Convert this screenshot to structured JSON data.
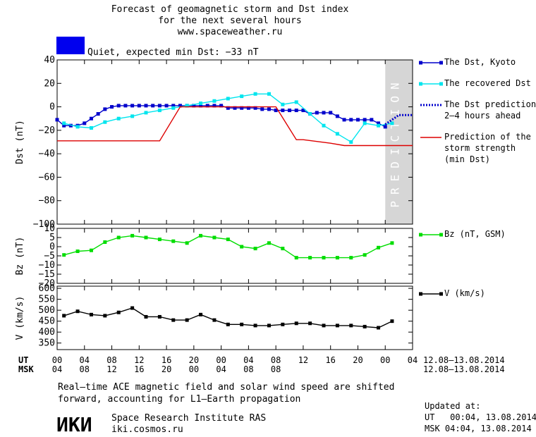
{
  "header": {
    "title_lines": [
      "Forecast of geomagnetic storm and Dst index",
      "for the next several hours",
      "www.spaceweather.ru"
    ],
    "status_text": "Quiet, expected min Dst: −33 nT",
    "status_color": "#0000ee"
  },
  "chart_data": [
    {
      "type": "line",
      "ylabel": "Dst (nT)",
      "ylim": [
        -100,
        40
      ],
      "yticks": [
        40,
        20,
        0,
        -20,
        -40,
        -60,
        -80,
        -100
      ],
      "ytick_labels": [
        "40",
        "20",
        "0",
        "−20",
        "−40",
        "−60",
        "−80",
        "−100"
      ],
      "xlim_hours": [
        0,
        52
      ],
      "prediction_band_hours": [
        48,
        52
      ],
      "prediction_text": "PREDICTION",
      "series": [
        {
          "name": "The Dst, Kyoto",
          "color": "#0000cc",
          "marker": "square",
          "x": [
            0,
            1,
            2,
            3,
            4,
            5,
            6,
            7,
            8,
            9,
            10,
            11,
            12,
            13,
            14,
            15,
            16,
            17,
            18,
            19,
            20,
            21,
            22,
            23,
            24,
            25,
            26,
            27,
            28,
            29,
            30,
            31,
            32,
            33,
            34,
            35,
            36,
            37,
            38,
            39,
            40,
            41,
            42,
            43,
            44,
            45,
            46,
            47,
            48
          ],
          "y": [
            -11,
            -16,
            -16,
            -16,
            -14,
            -10,
            -6,
            -2,
            0,
            1,
            1,
            1,
            1,
            1,
            1,
            1,
            1,
            1,
            1,
            1,
            1,
            1,
            1,
            1,
            1,
            -1,
            -1,
            -1,
            -1,
            -1,
            -2,
            -2,
            -3,
            -3,
            -3,
            -3,
            -3,
            -6,
            -5,
            -5,
            -5,
            -8,
            -11,
            -11,
            -11,
            -11,
            -11,
            -14,
            -17
          ]
        },
        {
          "name": "The recovered Dst",
          "color": "#00e5ee",
          "marker": "square",
          "x": [
            1,
            3,
            5,
            7,
            9,
            11,
            13,
            15,
            17,
            19,
            21,
            23,
            25,
            27,
            29,
            31,
            33,
            35,
            37,
            39,
            41,
            43,
            45,
            47,
            49
          ],
          "y": [
            -14,
            -17,
            -18,
            -13,
            -10,
            -8,
            -5,
            -3,
            -1,
            1,
            3,
            5,
            7,
            9,
            11,
            11,
            2,
            4,
            -6,
            -16,
            -23,
            -30,
            -14,
            -16,
            -14
          ]
        },
        {
          "name": "The Dst prediction 2–4 hours ahead",
          "color": "#0000cc",
          "style": "dotted",
          "x": [
            48,
            50,
            52
          ],
          "y": [
            -15,
            -7,
            -7
          ]
        },
        {
          "name": "Prediction of the storm strength (min Dst)",
          "color": "#dd0000",
          "x": [
            0,
            15,
            18,
            32,
            35,
            36,
            40,
            42,
            52
          ],
          "y": [
            -29,
            -29,
            0,
            0,
            -28,
            -28,
            -31,
            -33,
            -33
          ]
        }
      ],
      "legend": {
        "items": [
          {
            "lines": [
              "The Dst, Kyoto"
            ],
            "color": "#0000cc",
            "kind": "marker-line"
          },
          {
            "lines": [
              "The recovered Dst"
            ],
            "color": "#00e5ee",
            "kind": "marker-line"
          },
          {
            "lines": [
              "The Dst prediction",
              "2–4 hours ahead"
            ],
            "color": "#0000cc",
            "kind": "dotted"
          },
          {
            "lines": [
              "Prediction of the",
              "storm strength",
              "(min Dst)"
            ],
            "color": "#dd0000",
            "kind": "line"
          }
        ]
      }
    },
    {
      "type": "line",
      "ylabel": "Bz (nT)",
      "ylim": [
        -20,
        10
      ],
      "yticks": [
        10,
        5,
        0,
        -5,
        -10,
        -15,
        -20
      ],
      "ytick_labels": [
        "10",
        "5",
        "0",
        "−5",
        "−10",
        "−15",
        "−20"
      ],
      "series": [
        {
          "name": "Bz (nT, GSM)",
          "color": "#00dd00",
          "marker": "square",
          "x": [
            1,
            3,
            5,
            7,
            9,
            11,
            13,
            15,
            17,
            19,
            21,
            23,
            25,
            27,
            29,
            31,
            33,
            35,
            37,
            39,
            41,
            43,
            45,
            47,
            49
          ],
          "y": [
            -4.5,
            -2.5,
            -2,
            2.5,
            5,
            6,
            5,
            4,
            3,
            2,
            6,
            5,
            4,
            0,
            -1,
            2,
            -1,
            -6,
            -6,
            -6,
            -6,
            -6,
            -4.5,
            -0.5,
            2
          ]
        }
      ]
    },
    {
      "type": "line",
      "ylabel": "V (km/s)",
      "ylim": [
        320,
        610
      ],
      "yticks": [
        600,
        550,
        500,
        450,
        400,
        350
      ],
      "ytick_labels": [
        "600",
        "550",
        "500",
        "450",
        "400",
        "350"
      ],
      "series": [
        {
          "name": "V (km/s)",
          "color": "#000000",
          "marker": "square",
          "x": [
            1,
            3,
            5,
            7,
            9,
            11,
            13,
            15,
            17,
            19,
            21,
            23,
            25,
            27,
            29,
            31,
            33,
            35,
            37,
            39,
            41,
            43,
            45,
            47,
            49
          ],
          "y": [
            475,
            495,
            480,
            475,
            490,
            510,
            470,
            470,
            455,
            455,
            480,
            455,
            435,
            435,
            430,
            430,
            435,
            440,
            440,
            430,
            430,
            430,
            425,
            420,
            450
          ]
        }
      ]
    }
  ],
  "time_axis": {
    "ut_label": "UT",
    "msk_label": "MSK",
    "ut_ticks": [
      "00",
      "04",
      "08",
      "12",
      "16",
      "20",
      "00",
      "04",
      "08",
      "12",
      "16",
      "20",
      "00",
      "04",
      "04"
    ],
    "msk_ticks": [
      "04",
      "08",
      "12",
      "16",
      "20",
      "00",
      "04",
      "08",
      "08"
    ],
    "date_range_ut": "12.08–13.08.2014",
    "date_range_msk": "12.08–13.08.2014"
  },
  "footer": {
    "note_lines": [
      "Real–time ACE magnetic field and solar wind speed are shifted",
      "forward, accounting for L1–Earth propagation"
    ],
    "logo_text": "ИКИ",
    "institute": "Space Research Institute RAS",
    "site": "iki.cosmos.ru",
    "updated_label": "Updated at:",
    "updated_ut": "UT   00:04, 13.08.2014",
    "updated_msk": "MSK 04:04, 13.08.2014"
  }
}
